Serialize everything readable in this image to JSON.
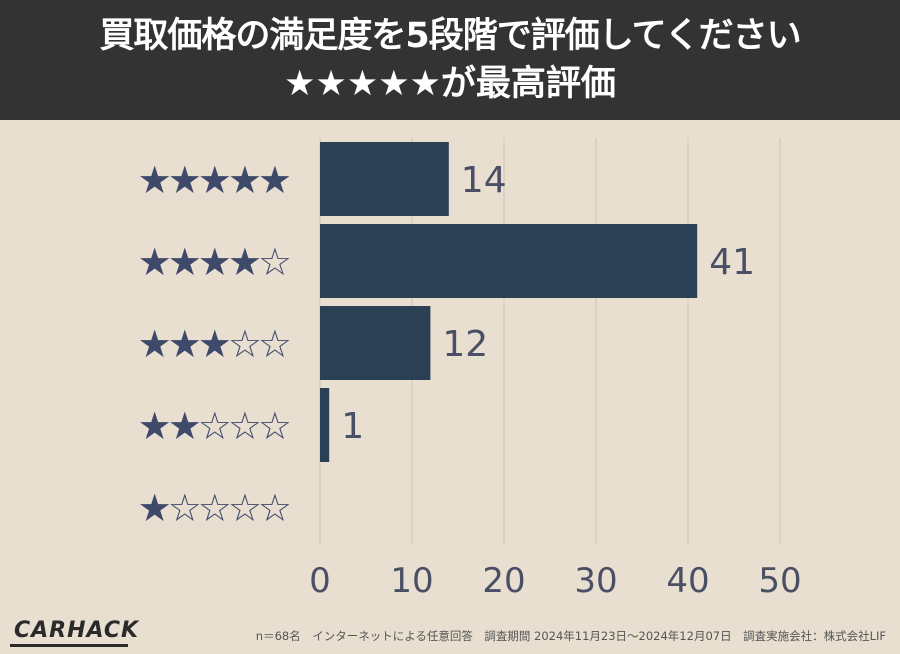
{
  "header": {
    "title_line1": "買取価格の満足度を5段階で評価してください",
    "title_line2": "★★★★★が最高評価"
  },
  "chart_data": {
    "type": "bar",
    "orientation": "horizontal",
    "categories": [
      "★★★★★",
      "★★★★☆",
      "★★★☆☆",
      "★★☆☆☆",
      "★☆☆☆☆"
    ],
    "values": [
      14,
      41,
      12,
      1,
      0
    ],
    "xlim": [
      0,
      50
    ],
    "xticks": [
      0,
      10,
      20,
      30,
      40,
      50
    ],
    "grid": true,
    "colors": {
      "bar": "#2b4055",
      "stars": "#3f4a6b",
      "grid": "#cfc6b6",
      "value_text": "#4a4f66",
      "tick_text": "#4a4f66"
    }
  },
  "footer": {
    "logo": "CARHACK",
    "note": "n＝68名　インターネットによる任意回答　調査期間 2024年11月23日〜2024年12月07日　調査実施会社：株式会社LIF"
  }
}
